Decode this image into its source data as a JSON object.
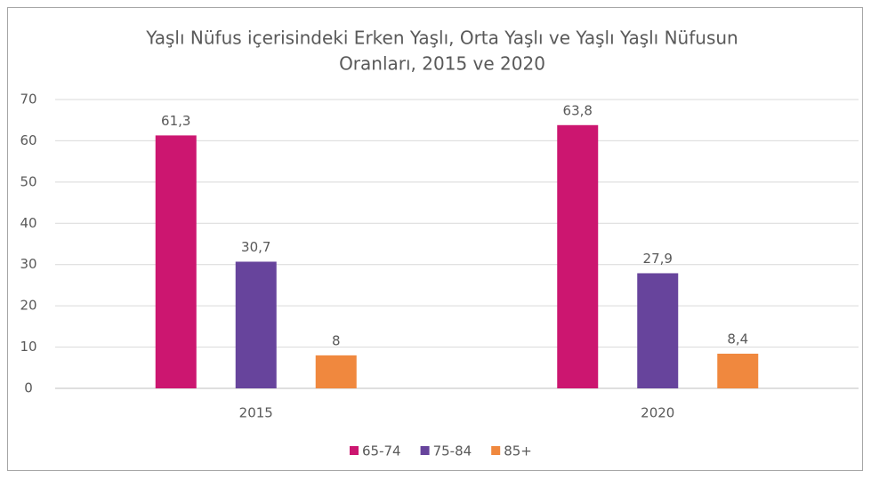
{
  "chart_data": {
    "type": "bar",
    "title": [
      "Yaşlı Nüfus içerisindeki Erken Yaşlı, Orta Yaşlı ve Yaşlı Yaşlı Nüfusun",
      "Oranları, 2015 ve 2020"
    ],
    "categories": [
      "2015",
      "2020"
    ],
    "series": [
      {
        "name": "65-74",
        "color": "#cc1670",
        "values": [
          61.3,
          63.8
        ],
        "value_labels": [
          "61,3",
          "63,8"
        ]
      },
      {
        "name": "75-84",
        "color": "#67449c",
        "values": [
          30.7,
          27.9
        ],
        "value_labels": [
          "30,7",
          "27,9"
        ]
      },
      {
        "name": "85+",
        "color": "#f0883e",
        "values": [
          8,
          8.4
        ],
        "value_labels": [
          "8",
          "8,4"
        ]
      }
    ],
    "ylim": [
      0,
      70
    ],
    "yticks": [
      0,
      10,
      20,
      30,
      40,
      50,
      60,
      70
    ],
    "grid": true,
    "legend": "bottom"
  }
}
